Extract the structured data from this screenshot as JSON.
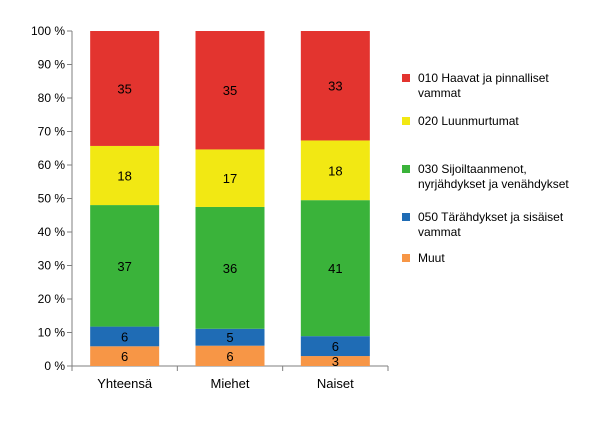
{
  "chart_data": {
    "type": "bar",
    "stacked": true,
    "percent": true,
    "categories": [
      "Yhteensä",
      "Miehet",
      "Naiset"
    ],
    "ylim": [
      0,
      100
    ],
    "yticks": [
      "0 %",
      "10 %",
      "20 %",
      "30 %",
      "40 %",
      "50 %",
      "60 %",
      "70 %",
      "80 %",
      "90 %",
      "100 %"
    ],
    "grid": false,
    "legend_position": "right",
    "series": [
      {
        "name": "Muut",
        "color": "#F79646",
        "values": [
          6,
          6,
          3
        ]
      },
      {
        "name": "050  Tärähdykset ja sisäiset vammat",
        "legend_lines": [
          "050  Tärähdykset ja sisäiset",
          "vammat"
        ],
        "color": "#1F6CB5",
        "values": [
          6,
          5,
          6
        ]
      },
      {
        "name": "030  Sijoiltaanmenot, nyrjähdykset ja venähdykset",
        "legend_lines": [
          "030  Sijoiltaanmenot,",
          "nyrjähdykset ja venähdykset"
        ],
        "color": "#3AB33A",
        "values": [
          37,
          36,
          41
        ]
      },
      {
        "name": "020  Luunmurtumat",
        "legend_lines": [
          "020  Luunmurtumat"
        ],
        "color": "#F2E813",
        "values": [
          18,
          17,
          18
        ]
      },
      {
        "name": "010  Haavat ja pinnalliset vammat",
        "legend_lines": [
          "010  Haavat ja pinnalliset",
          "vammat"
        ],
        "color": "#E3342F",
        "values": [
          35,
          35,
          33
        ]
      }
    ]
  }
}
